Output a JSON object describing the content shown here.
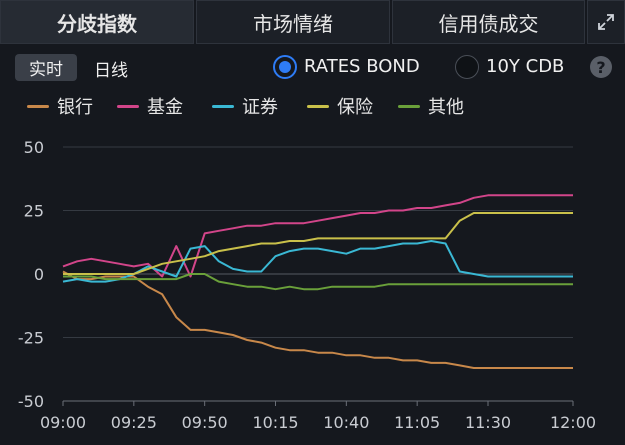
{
  "tabs": [
    {
      "label": "分歧指数",
      "active": true
    },
    {
      "label": "市场情绪",
      "active": false
    },
    {
      "label": "信用债成交",
      "active": false
    }
  ],
  "controls": {
    "realtime_label": "实时",
    "daily_label": "日线",
    "options": [
      {
        "label": "RATES BOND",
        "selected": true
      },
      {
        "label": "10Y CDB",
        "selected": false
      }
    ],
    "help_label": "?"
  },
  "chart_data": {
    "type": "line",
    "title": "",
    "xlabel": "",
    "ylabel": "",
    "ylim": [
      -50,
      50
    ],
    "yticks": [
      50,
      25,
      0,
      -25,
      -50
    ],
    "xlim": [
      "09:00",
      "12:00"
    ],
    "xticks": [
      "09:00",
      "09:25",
      "09:50",
      "10:15",
      "10:40",
      "11:05",
      "11:30",
      "12:00"
    ],
    "grid": true,
    "legend_position": "top-left",
    "x": [
      "09:00",
      "09:05",
      "09:10",
      "09:15",
      "09:20",
      "09:25",
      "09:30",
      "09:35",
      "09:40",
      "09:45",
      "09:50",
      "09:55",
      "10:00",
      "10:05",
      "10:10",
      "10:15",
      "10:20",
      "10:25",
      "10:30",
      "10:35",
      "10:40",
      "10:45",
      "10:50",
      "10:55",
      "11:00",
      "11:05",
      "11:10",
      "11:15",
      "11:20",
      "11:25",
      "11:30",
      "11:35",
      "11:40",
      "11:45",
      "11:50",
      "11:55",
      "12:00"
    ],
    "series": [
      {
        "name": "银行",
        "color": "#c8884a",
        "values": [
          1,
          -2,
          -2,
          -1,
          -1,
          -1,
          -5,
          -8,
          -17,
          -22,
          -22,
          -23,
          -24,
          -26,
          -27,
          -29,
          -30,
          -30,
          -31,
          -31,
          -32,
          -32,
          -33,
          -33,
          -34,
          -34,
          -35,
          -35,
          -36,
          -37,
          -37,
          -37,
          -37,
          -37,
          -37,
          -37,
          -37
        ]
      },
      {
        "name": "基金",
        "color": "#d2458a",
        "values": [
          3,
          5,
          6,
          5,
          4,
          3,
          4,
          -1,
          11,
          -1,
          16,
          17,
          18,
          19,
          19,
          20,
          20,
          20,
          21,
          22,
          23,
          24,
          24,
          25,
          25,
          26,
          26,
          27,
          28,
          30,
          31,
          31,
          31,
          31,
          31,
          31,
          31
        ]
      },
      {
        "name": "证券",
        "color": "#3ab8d4",
        "values": [
          -3,
          -2,
          -3,
          -3,
          -2,
          0,
          3,
          1,
          -1,
          10,
          11,
          5,
          2,
          1,
          1,
          7,
          9,
          10,
          10,
          9,
          8,
          10,
          10,
          11,
          12,
          12,
          13,
          12,
          1,
          0,
          -1,
          -1,
          -1,
          -1,
          -1,
          -1,
          -1
        ]
      },
      {
        "name": "保险",
        "color": "#c9c04a",
        "values": [
          0,
          0,
          0,
          0,
          0,
          0,
          2,
          4,
          5,
          6,
          7,
          9,
          10,
          11,
          12,
          12,
          13,
          13,
          14,
          14,
          14,
          14,
          14,
          14,
          14,
          14,
          14,
          14,
          21,
          24,
          24,
          24,
          24,
          24,
          24,
          24,
          24
        ]
      },
      {
        "name": "其他",
        "color": "#6aa03a",
        "values": [
          -1,
          -1,
          -1,
          -2,
          -2,
          -2,
          -2,
          -2,
          -2,
          0,
          0,
          -3,
          -4,
          -5,
          -5,
          -6,
          -5,
          -6,
          -6,
          -5,
          -5,
          -5,
          -5,
          -4,
          -4,
          -4,
          -4,
          -4,
          -4,
          -4,
          -4,
          -4,
          -4,
          -4,
          -4,
          -4,
          -4
        ]
      }
    ]
  }
}
